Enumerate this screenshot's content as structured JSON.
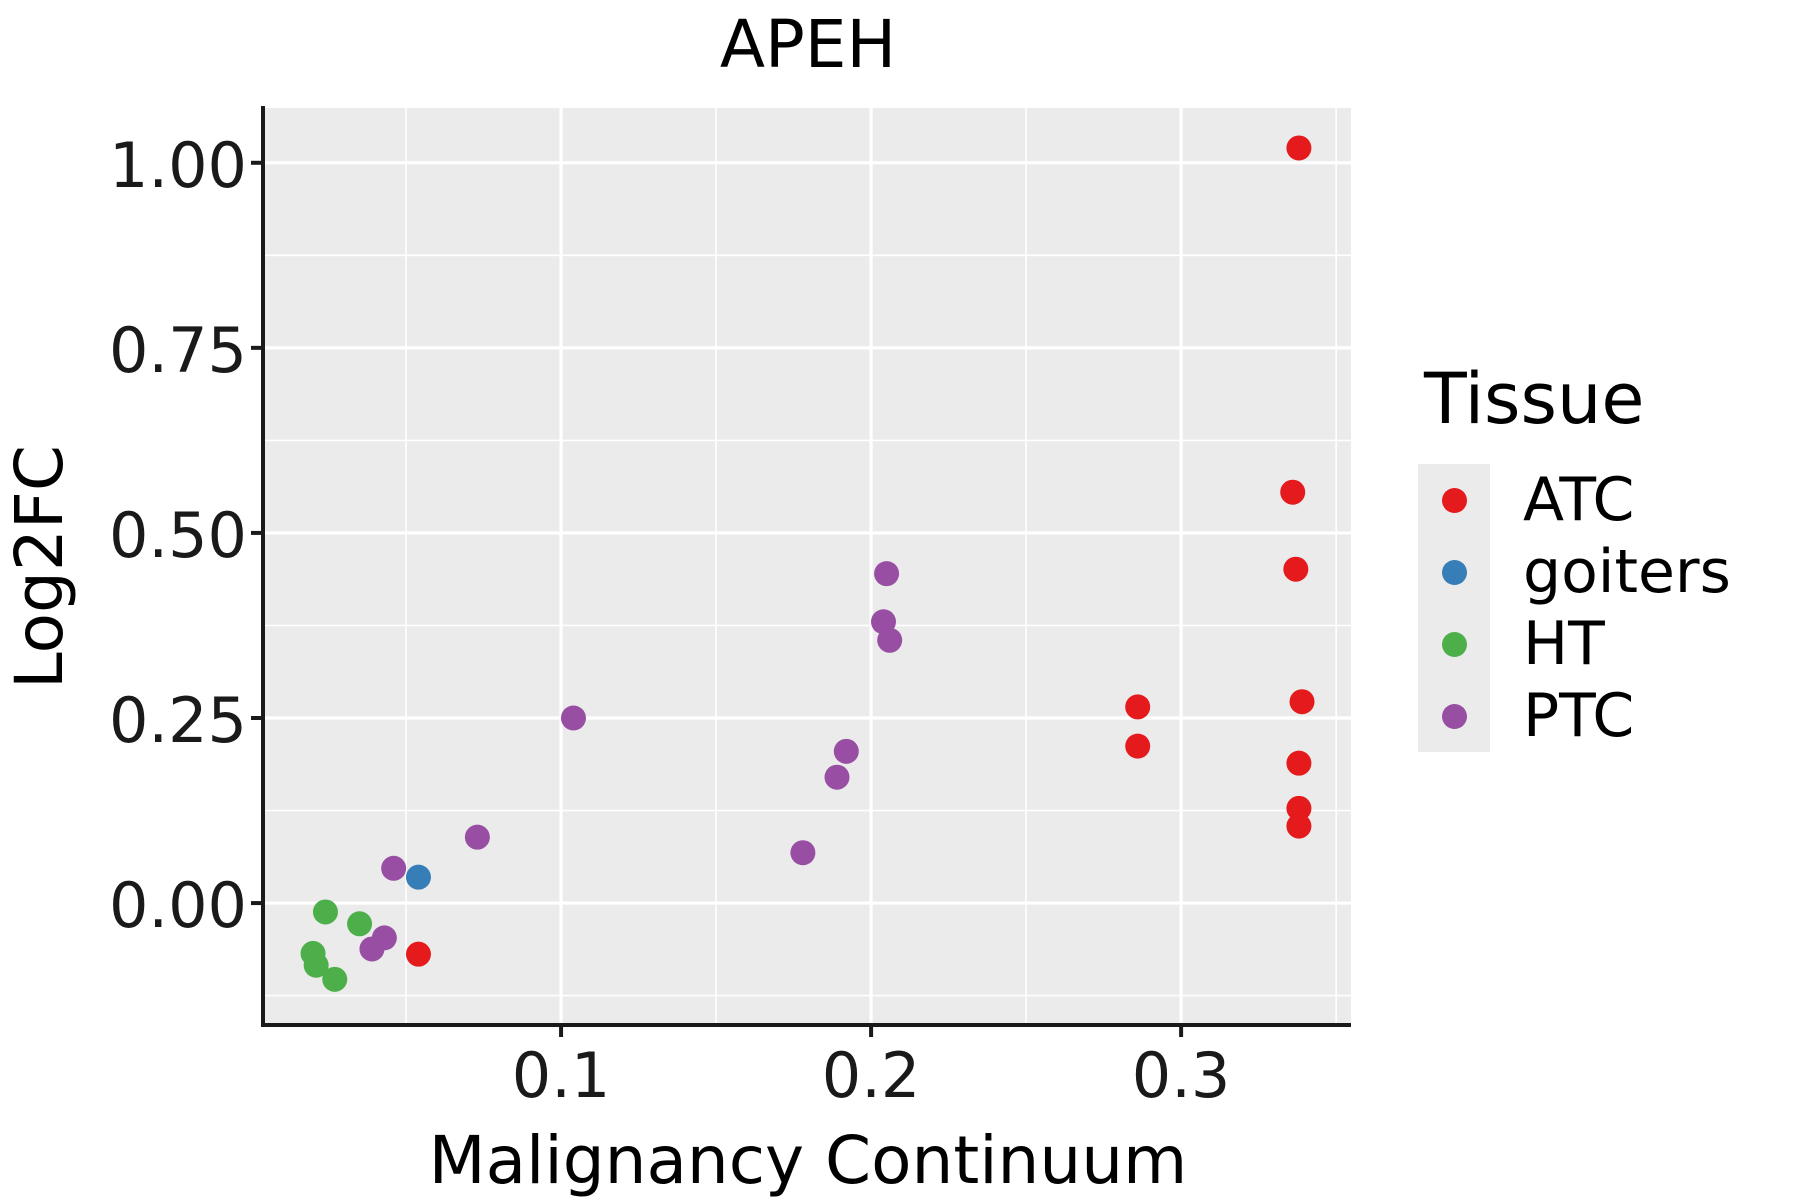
{
  "page": {
    "background": "#FFFFFF"
  },
  "chart_data": {
    "type": "scatter",
    "title": "APEH",
    "x_axis": {
      "label": "Malignancy Continuum",
      "ticks": [
        0.1,
        0.2,
        0.3
      ],
      "tick_labels": [
        "0.1",
        "0.2",
        "0.3"
      ],
      "minor_ticks": [
        0.05,
        0.15,
        0.25,
        0.35
      ],
      "range": [
        0.0045,
        0.3548
      ],
      "grid": true
    },
    "y_axis": {
      "label": "Log2FC",
      "ticks": [
        0.0,
        0.25,
        0.5,
        0.75,
        1.0
      ],
      "tick_labels": [
        "0.00",
        "0.25",
        "0.50",
        "0.75",
        "1.00"
      ],
      "minor_ticks": [
        -0.125,
        0.125,
        0.375,
        0.625,
        0.875
      ],
      "range": [
        -0.162,
        1.074
      ],
      "grid": true
    },
    "panel": {
      "background": "#EBEBEB",
      "grid_color": "#FFFFFF",
      "axis_color": "#1A1A1A"
    },
    "point_radius": 12.5,
    "series": [
      {
        "name": "ATC",
        "color": "#E41A1C",
        "points": [
          [
            0.338,
            1.02
          ],
          [
            0.336,
            0.555
          ],
          [
            0.337,
            0.451
          ],
          [
            0.339,
            0.272
          ],
          [
            0.286,
            0.265
          ],
          [
            0.286,
            0.212
          ],
          [
            0.338,
            0.189
          ],
          [
            0.338,
            0.128
          ],
          [
            0.338,
            0.104
          ],
          [
            0.054,
            -0.069
          ]
        ]
      },
      {
        "name": "goiters",
        "color": "#377EB8",
        "points": [
          [
            0.054,
            0.035
          ]
        ]
      },
      {
        "name": "HT",
        "color": "#4DAF4A",
        "points": [
          [
            0.024,
            -0.012
          ],
          [
            0.035,
            -0.028
          ],
          [
            0.02,
            -0.068
          ],
          [
            0.021,
            -0.084
          ],
          [
            0.027,
            -0.103
          ]
        ]
      },
      {
        "name": "PTC",
        "color": "#984EA3",
        "points": [
          [
            0.104,
            0.25
          ],
          [
            0.205,
            0.445
          ],
          [
            0.204,
            0.38
          ],
          [
            0.206,
            0.355
          ],
          [
            0.192,
            0.205
          ],
          [
            0.189,
            0.17
          ],
          [
            0.178,
            0.068
          ],
          [
            0.073,
            0.089
          ],
          [
            0.046,
            0.047
          ],
          [
            0.043,
            -0.047
          ],
          [
            0.039,
            -0.062
          ]
        ]
      }
    ],
    "legend": {
      "title": "Tissue",
      "position": "right",
      "items": [
        {
          "label": "ATC",
          "color": "#E41A1C"
        },
        {
          "label": "goiters",
          "color": "#377EB8"
        },
        {
          "label": "HT",
          "color": "#4DAF4A"
        },
        {
          "label": "PTC",
          "color": "#984EA3"
        }
      ]
    }
  }
}
